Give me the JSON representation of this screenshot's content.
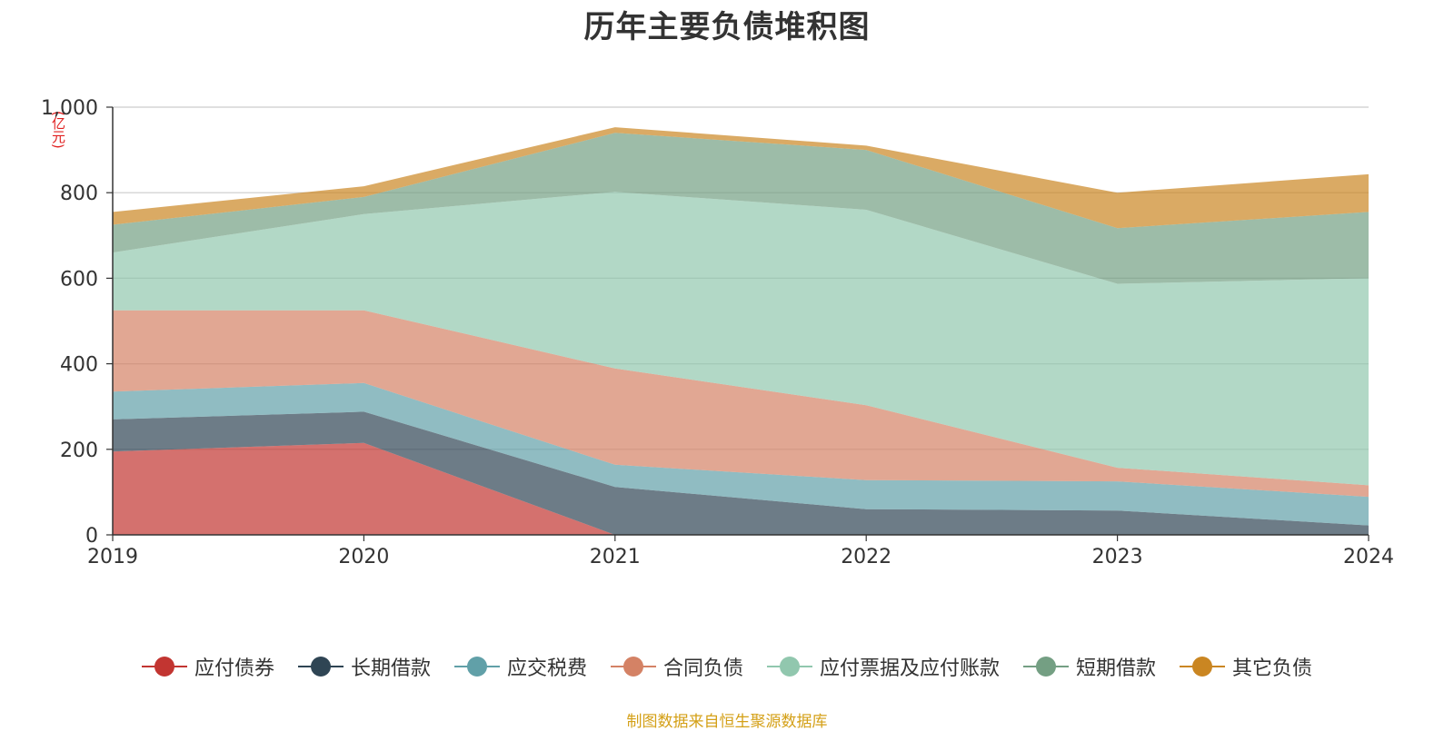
{
  "chart_data": {
    "type": "area",
    "stacked": true,
    "title": "历年主要负债堆积图",
    "unit": "(亿元)",
    "categories": [
      "2019",
      "2020",
      "2021",
      "2022",
      "2023",
      "2024"
    ],
    "ylim": [
      0,
      1000
    ],
    "yticks": [
      "0",
      "200",
      "400",
      "600",
      "800",
      "1,000"
    ],
    "grid": true,
    "legend_position": "bottom",
    "series": [
      {
        "name": "应付债券",
        "color": "#c23531",
        "values": [
          195,
          215,
          0,
          0,
          0,
          0
        ]
      },
      {
        "name": "长期借款",
        "color": "#2f4554",
        "values": [
          75,
          73,
          112,
          60,
          57,
          22
        ]
      },
      {
        "name": "应交税费",
        "color": "#61a0a8",
        "values": [
          65,
          67,
          52,
          68,
          68,
          67
        ]
      },
      {
        "name": "合同负债",
        "color": "#d48265",
        "values": [
          190,
          170,
          225,
          175,
          32,
          27
        ]
      },
      {
        "name": "应付票据及应付账款",
        "color": "#91c7ae",
        "values": [
          135,
          225,
          413,
          457,
          430,
          484
        ]
      },
      {
        "name": "短期借款",
        "color": "#749f83",
        "values": [
          65,
          40,
          138,
          140,
          130,
          155
        ]
      },
      {
        "name": "其它负债",
        "color": "#ca8622",
        "values": [
          30,
          25,
          13,
          10,
          83,
          88
        ]
      }
    ],
    "source": "制图数据来自恒生聚源数据库"
  }
}
